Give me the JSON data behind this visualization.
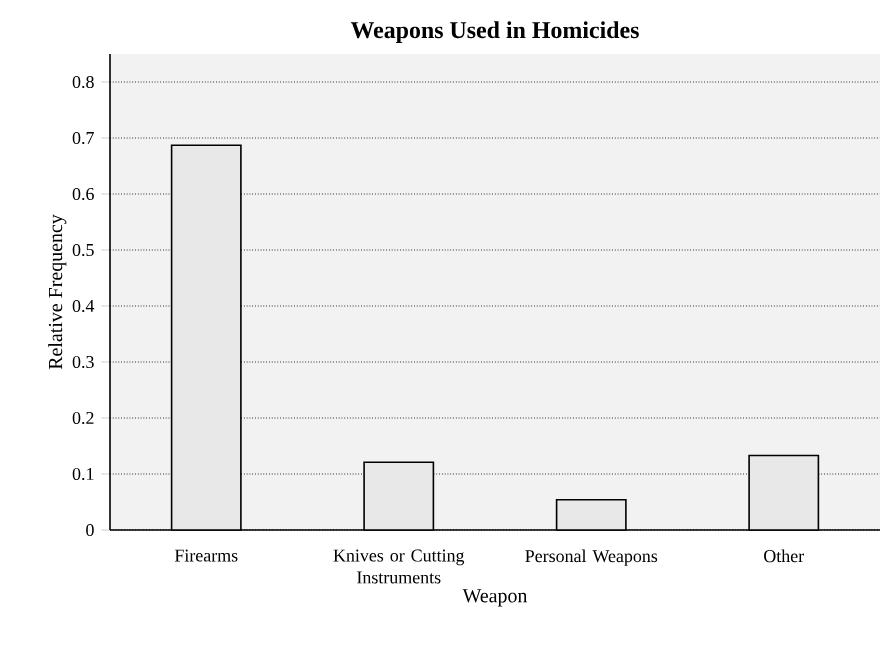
{
  "chart_data": {
    "type": "bar",
    "title": "Weapons Used in Homicides",
    "xlabel": "Weapon",
    "ylabel": "Relative Frequency",
    "categories": [
      "Firearms",
      "Knives or Cutting Instruments",
      "Personal Weapons",
      "Other"
    ],
    "values": [
      0.687,
      0.121,
      0.054,
      0.133
    ],
    "color": "#e8e8e8",
    "ylim": [
      0,
      0.85
    ],
    "yticks": [
      0,
      0.1,
      0.2,
      0.3,
      0.4,
      0.5,
      0.6,
      0.7,
      0.8
    ],
    "grid": "y"
  }
}
